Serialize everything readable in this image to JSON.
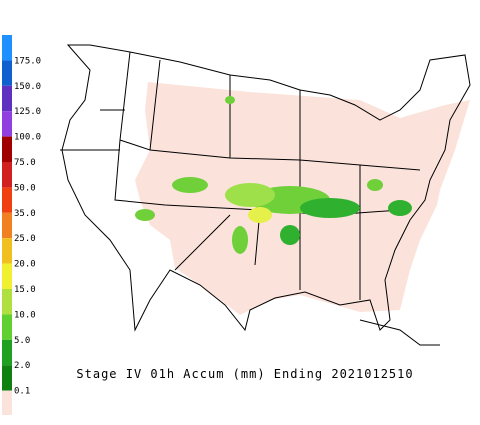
{
  "legend": {
    "labels": [
      "175.0",
      "150.0",
      "125.0",
      "100.0",
      "75.0",
      "50.0",
      "35.0",
      "25.0",
      "20.0",
      "15.0",
      "10.0",
      "5.0",
      "2.0",
      "0.1"
    ]
  },
  "caption": "Stage IV 01h Accum (mm) Ending 2021012510"
}
